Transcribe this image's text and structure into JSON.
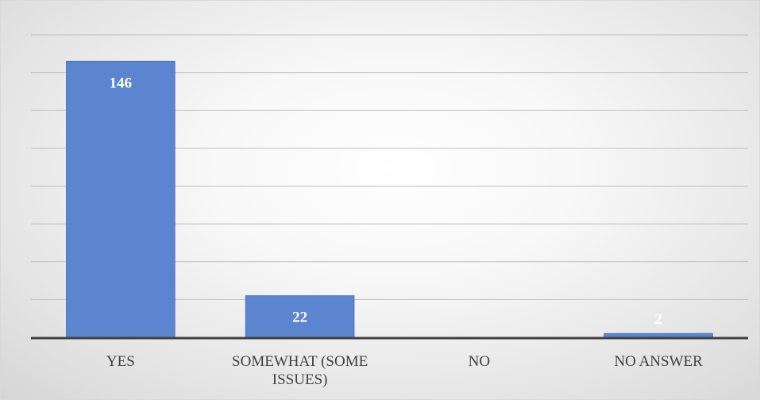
{
  "chart_data": {
    "type": "bar",
    "title": "",
    "xlabel": "",
    "ylabel": "",
    "categories": [
      "YES",
      "SOMEWHAT (SOME ISSUES)",
      "NO",
      "NO ANSWER"
    ],
    "category_lines": [
      [
        "YES"
      ],
      [
        "SOMEWHAT (SOME",
        "ISSUES)"
      ],
      [
        "NO"
      ],
      [
        "NO ANSWER"
      ]
    ],
    "values": [
      146,
      22,
      0,
      2
    ],
    "data_labels": [
      "146",
      "22",
      "",
      "2"
    ],
    "ylim": [
      0,
      160
    ],
    "gridline_step": 20,
    "grid": true,
    "legend": "none",
    "y_tick_labels_shown": false,
    "colors": {
      "bar": "#5b86cf",
      "bar_edge": "#4a74bd",
      "gridline": "#bfbfbf",
      "axis": "#404040",
      "data_label": "#ffffff",
      "category_label": "#404040"
    }
  }
}
